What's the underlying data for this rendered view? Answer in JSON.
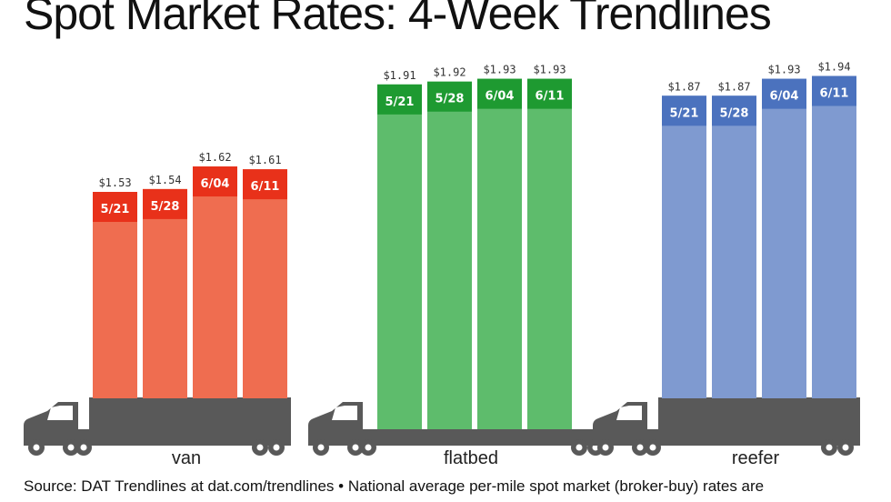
{
  "chart_data": {
    "type": "bar",
    "title": "Spot Market Rates: 4-Week Trendlines",
    "value_format": "$",
    "groups": [
      {
        "name": "van",
        "colors": {
          "body": "#ef6d50",
          "header": "#e8311a"
        },
        "bars": [
          {
            "label": "5/21",
            "value": 1.53
          },
          {
            "label": "5/28",
            "value": 1.54
          },
          {
            "label": "6/04",
            "value": 1.62
          },
          {
            "label": "6/11",
            "value": 1.61
          }
        ]
      },
      {
        "name": "flatbed",
        "colors": {
          "body": "#5ebc6c",
          "header": "#1e9a31"
        },
        "bars": [
          {
            "label": "5/21",
            "value": 1.91
          },
          {
            "label": "5/28",
            "value": 1.92
          },
          {
            "label": "6/04",
            "value": 1.93
          },
          {
            "label": "6/11",
            "value": 1.93
          }
        ]
      },
      {
        "name": "reefer",
        "colors": {
          "body": "#7f9ad0",
          "header": "#4b72be"
        },
        "bars": [
          {
            "label": "5/21",
            "value": 1.87
          },
          {
            "label": "5/28",
            "value": 1.87
          },
          {
            "label": "6/04",
            "value": 1.93
          },
          {
            "label": "6/11",
            "value": 1.94
          }
        ]
      }
    ]
  },
  "source_text": "Source: DAT Trendlines at dat.com/trendlines • National average per-mile spot market (broker-buy) rates are",
  "truck_color": "#595959"
}
